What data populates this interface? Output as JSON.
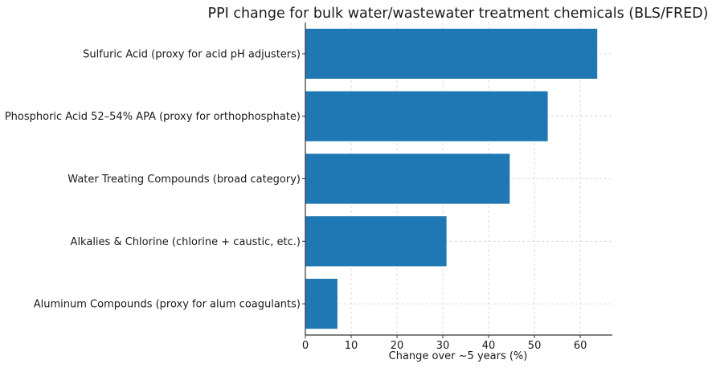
{
  "chart_data": {
    "type": "bar",
    "orientation": "horizontal",
    "title": "PPI change for bulk water/wastewater treatment chemicals (BLS/FRED)",
    "xlabel": "Change over ~5 years (%)",
    "ylabel": "",
    "xlim": [
      0,
      67
    ],
    "xticks": [
      0,
      10,
      20,
      30,
      40,
      50,
      60
    ],
    "grid": true,
    "bar_color": "#1f77b4",
    "categories": [
      "Sulfuric Acid (proxy for acid pH adjusters)",
      "Phosphoric Acid 52–54% APA (proxy for orthophosphate)",
      "Water Treating Compounds (broad category)",
      "Alkalies & Chlorine (chlorine + caustic, etc.)",
      "Aluminum Compounds (proxy for alum coagulants)"
    ],
    "values": [
      63.7,
      52.9,
      44.6,
      30.8,
      7.0
    ]
  }
}
